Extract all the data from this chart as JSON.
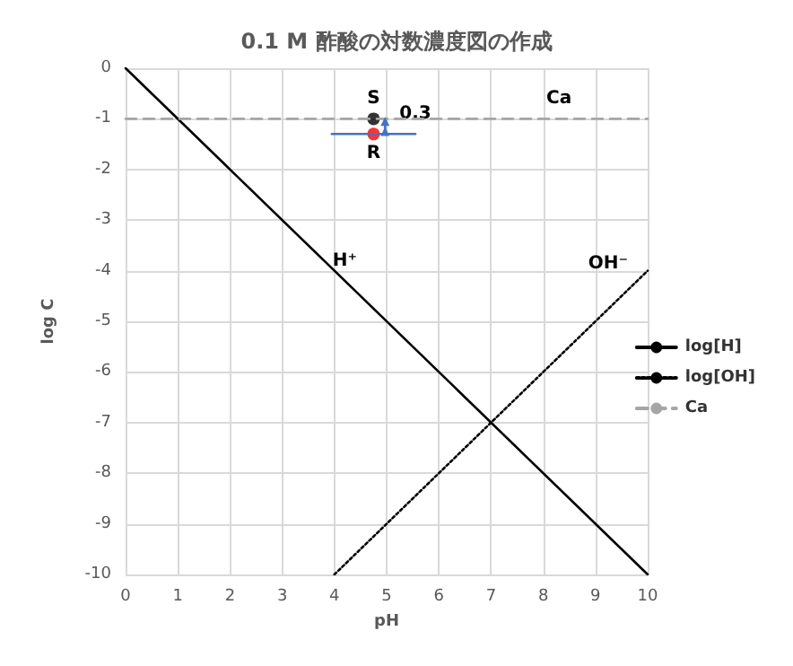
{
  "chart_data": {
    "type": "line",
    "title": "0.1 M 酢酸の対数濃度図の作成",
    "xlabel": "pH",
    "ylabel": "log C",
    "xlim": [
      0,
      10
    ],
    "xticks": [
      0,
      1,
      2,
      3,
      4,
      5,
      6,
      7,
      8,
      9,
      10
    ],
    "ylim": [
      -10,
      0
    ],
    "yticks": [
      -10,
      -9,
      -8,
      -7,
      -6,
      -5,
      -4,
      -3,
      -2,
      -1,
      0
    ],
    "grid": true,
    "legend": "right",
    "series": [
      {
        "name": "log[H]",
        "color": "#000000",
        "x": [
          0,
          10
        ],
        "values": [
          0,
          -10
        ],
        "line_style": "solid",
        "marker": "none"
      },
      {
        "name": "log[OH]",
        "color": "#000000",
        "x": [
          4,
          10
        ],
        "values": [
          -10,
          -4
        ],
        "line_style": "dotted",
        "marker": "none"
      },
      {
        "name": "Ca",
        "color": "#a6a6a6",
        "x": [
          0,
          10
        ],
        "values": [
          -1,
          -1
        ],
        "line_style": "dashed",
        "marker": "none"
      },
      {
        "color": "#4472c4",
        "x": [
          3.95,
          5.55
        ],
        "values": [
          -1.3,
          -1.3
        ],
        "line_style": "solid",
        "marker": "none"
      },
      {
        "color": "#4472c4",
        "x": [
          4.97,
          4.97
        ],
        "values": [
          -1.05,
          -1.25
        ],
        "line_style": "solid",
        "marker": "triangle"
      },
      {
        "type": "scatter",
        "color": "#000000",
        "x": [
          4.75
        ],
        "values": [
          -1
        ],
        "marker": "circle"
      },
      {
        "type": "scatter",
        "color": "#ff0000",
        "x": [
          4.75
        ],
        "values": [
          -1.3
        ],
        "marker": "circle"
      }
    ],
    "annotations": [
      {
        "text": "S",
        "x": 4.75,
        "y": -1
      },
      {
        "text": "R",
        "x": 4.75,
        "y": -1.3
      },
      {
        "text": "0.3",
        "x": 5.55,
        "y": -1.3
      },
      {
        "text": "Ca",
        "x": 8.3,
        "y": -1
      },
      {
        "text": "H⁺",
        "x": 4.2,
        "y": -4.2
      },
      {
        "text": "OH⁻",
        "x": 10,
        "y": -4
      }
    ]
  }
}
